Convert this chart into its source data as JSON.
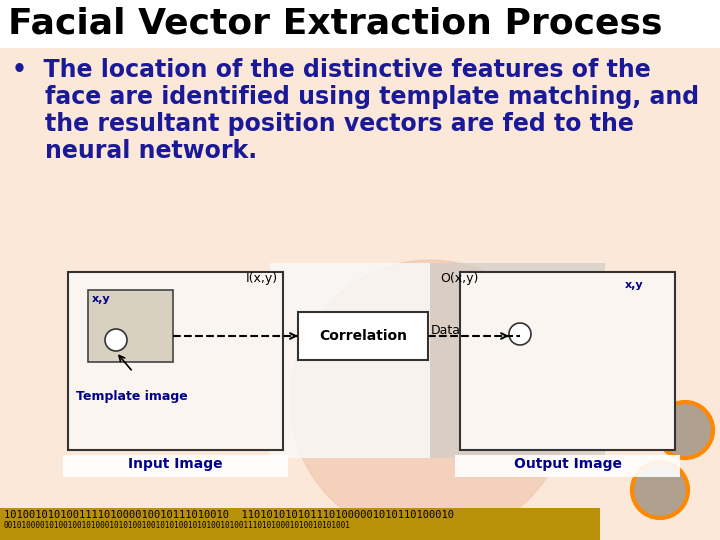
{
  "title": "Facial Vector Extraction Process",
  "title_color": "#000000",
  "title_fontsize": 26,
  "bullet_color": "#1a1a99",
  "bullet_fontsize": 17,
  "bg_color": "#fce8d8",
  "label_color": "#00008B",
  "input_label": "Input Image",
  "output_label": "Output Image",
  "corr_label": "Correlation",
  "template_label": "Template image",
  "i_label": "I(x,y)",
  "o_label": "O(x,y)",
  "data_label": "Data",
  "xy_label1": "x,y",
  "xy_label2": "x,y",
  "bottom_text1": "101001010100111101000010010111010010",
  "bottom_text2": "1101010101011101000001010110100010",
  "bottom_bg": "#b8900a",
  "bottom_text_color": "#000000",
  "orange_color": "#ff8800",
  "dark_orange": "#cc5500",
  "circle_gray": "#b0a090",
  "inp_box_color": "#faf5f0",
  "out_box_color": "#faf5f0",
  "corr_box_color": "#ffffff",
  "tmpl_box_color": "#d8d0c0",
  "white_panel_color": "#f8f8f8",
  "gray_panel_color": "#d0ccc8"
}
